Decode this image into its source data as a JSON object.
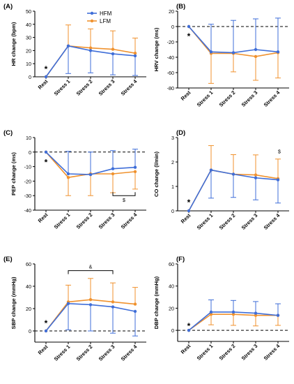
{
  "figure": {
    "legend": {
      "entries": [
        {
          "name": "HFM",
          "color": "#3f6ed8"
        },
        {
          "name": "LFM",
          "color": "#f0922e"
        }
      ]
    }
  },
  "chart_data": [
    {
      "panel": "(A)",
      "type": "line",
      "categories": [
        "Rest",
        "Stress 1",
        "Stress 2",
        "Stress 3",
        "Stress 4"
      ],
      "ylabel": "HR change (bpm)",
      "ylim": [
        0,
        50
      ],
      "yticks": [
        0,
        10,
        20,
        30,
        40,
        50
      ],
      "zero_line": false,
      "series": [
        {
          "name": "HFM",
          "values": [
            0,
            23.5,
            20,
            17.5,
            16
          ],
          "err_dir": "down",
          "err": [
            0,
            21,
            17,
            16,
            15
          ]
        },
        {
          "name": "LFM",
          "values": [
            0,
            23.5,
            22,
            21,
            18
          ],
          "err_dir": "up",
          "err": [
            0,
            16,
            14.5,
            14,
            11.5
          ]
        }
      ],
      "annotations": [
        {
          "text": "*",
          "x": 0,
          "y": 7
        }
      ]
    },
    {
      "panel": "(B)",
      "type": "line",
      "categories": [
        "Rest",
        "Stress 1",
        "Stress 2",
        "Stress 3",
        "Stress 4"
      ],
      "ylabel": "HRV change (ms)",
      "ylim": [
        -80,
        20
      ],
      "yticks": [
        -80,
        -60,
        -40,
        -20,
        0,
        20
      ],
      "zero_line": true,
      "series": [
        {
          "name": "HFM",
          "values": [
            0,
            -33,
            -34,
            -30,
            -33
          ],
          "err_dir": "up",
          "err": [
            0,
            36,
            42,
            40,
            44
          ]
        },
        {
          "name": "LFM",
          "values": [
            0,
            -35,
            -35,
            -39,
            -34
          ],
          "err_dir": "down",
          "err": [
            0,
            39,
            24,
            31,
            33
          ]
        }
      ],
      "annotations": [
        {
          "text": "*",
          "x": 0,
          "y": -11
        }
      ]
    },
    {
      "panel": "(C)",
      "type": "line",
      "categories": [
        "Rest",
        "Stress 1",
        "Stress 2",
        "Stress 3",
        "Stress 4"
      ],
      "ylabel": "PEP change (ms)",
      "ylim": [
        -40,
        10
      ],
      "yticks": [
        -40,
        -30,
        -20,
        -10,
        0,
        10
      ],
      "zero_line": true,
      "series": [
        {
          "name": "HFM",
          "values": [
            0,
            -15,
            -15.5,
            -11.5,
            -10.5
          ],
          "err_dir": "up",
          "err": [
            0,
            15.5,
            15.5,
            12.5,
            12.5
          ]
        },
        {
          "name": "LFM",
          "values": [
            0,
            -17.5,
            -15,
            -15,
            -13.5
          ],
          "err_dir": "down",
          "err": [
            0,
            12.5,
            15,
            13,
            12
          ]
        }
      ],
      "annotations": [
        {
          "text": "*",
          "x": 0,
          "y": -6
        }
      ],
      "brackets": [
        {
          "from": 3,
          "to": 4,
          "y": -30,
          "direction": "down",
          "label": "$"
        }
      ]
    },
    {
      "panel": "(D)",
      "type": "line",
      "categories": [
        "Rest",
        "Stress 1",
        "Stress 2",
        "Stress 3",
        "Stress 4"
      ],
      "ylabel": "CO change (l/min)",
      "ylim": [
        0,
        3
      ],
      "yticks": [
        0,
        1,
        2,
        3
      ],
      "zero_line": false,
      "series": [
        {
          "name": "HFM",
          "values": [
            0,
            1.67,
            1.5,
            1.35,
            1.27
          ],
          "err_dir": "down",
          "err": [
            0,
            1.15,
            0.95,
            0.9,
            0.95
          ]
        },
        {
          "name": "LFM",
          "values": [
            0,
            1.67,
            1.5,
            1.47,
            1.32
          ],
          "err_dir": "up",
          "err": [
            0,
            1.0,
            0.8,
            0.82,
            0.8
          ]
        }
      ],
      "annotations": [
        {
          "text": "*",
          "x": 0,
          "y": 0.4
        },
        {
          "text": "$",
          "x": 4,
          "y": 2.45
        }
      ]
    },
    {
      "panel": "(E)",
      "type": "line",
      "categories": [
        "Rest",
        "Stress 1",
        "Stress 2",
        "Stress 3",
        "Stress 4"
      ],
      "ylabel": "SBP change (mmHg)",
      "ylim": [
        -10,
        60
      ],
      "yticks": [
        0,
        20,
        40,
        60
      ],
      "zero_line": true,
      "series": [
        {
          "name": "HFM",
          "values": [
            0,
            24.5,
            23.5,
            21.5,
            17.5
          ],
          "err_dir": "down",
          "err": [
            0,
            23.5,
            23.5,
            23.5,
            22
          ]
        },
        {
          "name": "LFM",
          "values": [
            0,
            26,
            28,
            26,
            24
          ],
          "err_dir": "up",
          "err": [
            0,
            15,
            19,
            17,
            15
          ]
        }
      ],
      "annotations": [
        {
          "text": "*",
          "x": 0,
          "y": 8
        }
      ],
      "brackets": [
        {
          "from": 1,
          "to": 3,
          "y": 54,
          "direction": "up",
          "label": "&"
        }
      ]
    },
    {
      "panel": "(F)",
      "type": "line",
      "categories": [
        "Rest",
        "Stress 1",
        "Stress 2",
        "Stress 3",
        "Stress 4"
      ],
      "ylabel": "DBP change (mmHg)",
      "ylim": [
        -10,
        60
      ],
      "yticks": [
        0,
        20,
        40,
        60
      ],
      "zero_line": true,
      "series": [
        {
          "name": "HFM",
          "values": [
            0,
            16.5,
            16.5,
            15.5,
            13.5
          ],
          "err_dir": "up",
          "err": [
            0,
            11,
            10.5,
            10.5,
            10.5
          ]
        },
        {
          "name": "LFM",
          "values": [
            0,
            14.5,
            14.5,
            13.5,
            13.5
          ],
          "err_dir": "down",
          "err": [
            0,
            9.5,
            10,
            9.5,
            9
          ]
        }
      ],
      "annotations": [
        {
          "text": "*",
          "x": 0,
          "y": 5
        }
      ]
    }
  ]
}
